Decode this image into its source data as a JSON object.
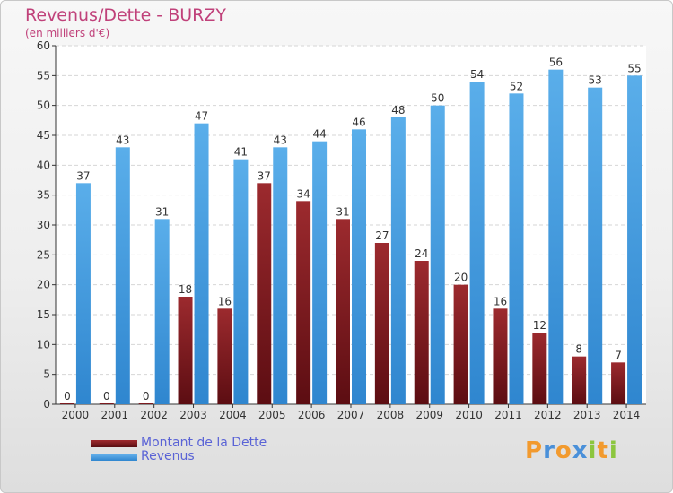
{
  "header": {
    "title": "Revenus/Dette - BURZY",
    "subtitle": "(en milliers d'€)"
  },
  "logo": {
    "text": "Proxiti",
    "letters": [
      "P",
      "r",
      "o",
      "x",
      "i",
      "t",
      "i"
    ],
    "colors": [
      "#f29a2e",
      "#4a90d9",
      "#f29a2e",
      "#4a90d9",
      "#8cc63f",
      "#f29a2e",
      "#8cc63f"
    ]
  },
  "chart_data": {
    "type": "bar",
    "title": "Revenus/Dette - BURZY",
    "subtitle": "(en milliers d'€)",
    "categories": [
      "2000",
      "2001",
      "2002",
      "2003",
      "2004",
      "2005",
      "2006",
      "2007",
      "2008",
      "2009",
      "2010",
      "2011",
      "2012",
      "2013",
      "2014"
    ],
    "series": [
      {
        "name": "Montant de la Dette",
        "color": "#7b1e22",
        "values": [
          0,
          0,
          0,
          18,
          16,
          37,
          34,
          31,
          27,
          24,
          20,
          16,
          12,
          8,
          7
        ]
      },
      {
        "name": "Revenus",
        "color": "#4a9fe0",
        "values": [
          37,
          43,
          31,
          47,
          41,
          43,
          44,
          46,
          48,
          50,
          54,
          52,
          56,
          53,
          55
        ]
      }
    ],
    "ylim": [
      0,
      60
    ],
    "yticks": [
      0,
      5,
      10,
      15,
      20,
      25,
      30,
      35,
      40,
      45,
      50,
      55,
      60
    ],
    "grid": true,
    "legend": "bottom-left"
  }
}
